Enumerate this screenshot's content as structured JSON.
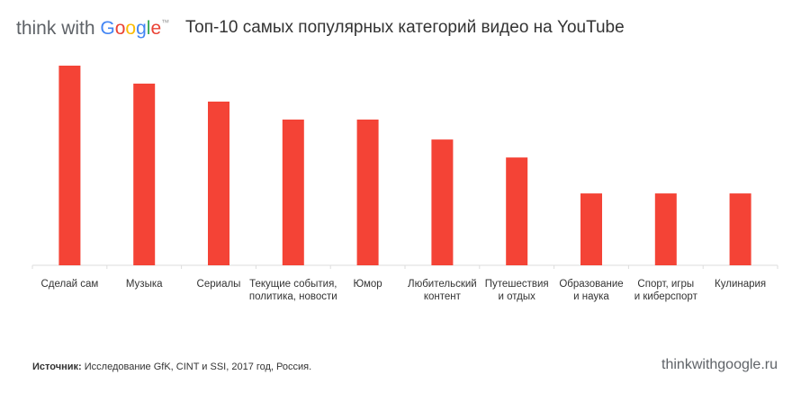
{
  "brand": {
    "prefix": "think with ",
    "google": [
      "G",
      "o",
      "o",
      "g",
      "l",
      "e"
    ],
    "tm": "™"
  },
  "title": "Топ-10 самых популярных категорий видео на YouTube",
  "source": {
    "label": "Источник:",
    "text": " Исследование GfK, CINT и SSI, 2017 год, Россия."
  },
  "site": "thinkwithgoogle.ru",
  "colors": {
    "bar": "#F44336",
    "axis": "#dddddd"
  },
  "chart_data": {
    "type": "bar",
    "title": "Топ-10 самых популярных категорий видео на YouTube",
    "categories": [
      "Сделай сам",
      "Музыка",
      "Сериалы",
      "Текущие события,\nполитика, новости",
      "Юмор",
      "Любительский\nконтент",
      "Путешествия\nи отдых",
      "Образование\nи наука",
      "Спорт, игры\nи киберспорт",
      "Кулинария"
    ],
    "values": [
      100,
      91,
      82,
      73,
      73,
      63,
      54,
      36,
      36,
      36
    ],
    "ylim": [
      0,
      100
    ],
    "grid": false,
    "legend": "none"
  }
}
